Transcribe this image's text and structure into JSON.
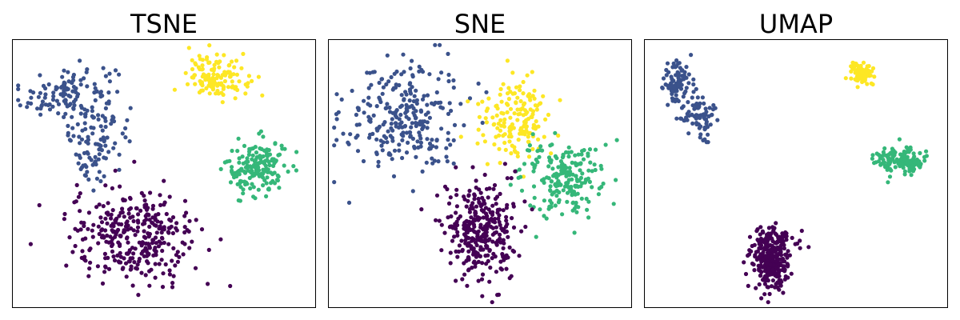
{
  "chart_data": [
    {
      "type": "scatter",
      "title": "TSNE",
      "xlabel": "",
      "ylabel": "",
      "axis_ticks": false,
      "grid": false,
      "legend": "none",
      "xlim": [
        0,
        100
      ],
      "ylim": [
        0,
        100
      ],
      "clusters": [
        {
          "color": "#3b528b",
          "count": 220,
          "parts": [
            {
              "cx": 18,
              "cy": 80,
              "sx": 8,
              "sy": 6,
              "frac": 0.6
            },
            {
              "cx": 28,
              "cy": 65,
              "sx": 5,
              "sy": 7,
              "frac": 0.25
            },
            {
              "cx": 26,
              "cy": 55,
              "sx": 4,
              "sy": 5,
              "frac": 0.15
            }
          ]
        },
        {
          "color": "#fde725",
          "count": 130,
          "parts": [
            {
              "cx": 68,
              "cy": 87,
              "sx": 5,
              "sy": 4,
              "frac": 1.0
            }
          ]
        },
        {
          "color": "#35b779",
          "count": 170,
          "parts": [
            {
              "cx": 81,
              "cy": 52,
              "sx": 5,
              "sy": 5.5,
              "frac": 1.0
            }
          ]
        },
        {
          "color": "#440154",
          "count": 330,
          "parts": [
            {
              "cx": 40,
              "cy": 26,
              "sx": 11,
              "sy": 9,
              "frac": 1.0
            }
          ]
        }
      ]
    },
    {
      "type": "scatter",
      "title": "SNE",
      "xlabel": "",
      "ylabel": "",
      "axis_ticks": false,
      "grid": false,
      "legend": "none",
      "xlim": [
        0,
        100
      ],
      "ylim": [
        0,
        100
      ],
      "clusters": [
        {
          "color": "#3b528b",
          "count": 270,
          "parts": [
            {
              "cx": 24,
              "cy": 72,
              "sx": 10,
              "sy": 11,
              "frac": 1.0
            }
          ]
        },
        {
          "color": "#fde725",
          "count": 160,
          "parts": [
            {
              "cx": 62,
              "cy": 71,
              "sx": 6,
              "sy": 7,
              "frac": 1.0
            }
          ]
        },
        {
          "color": "#35b779",
          "count": 200,
          "parts": [
            {
              "cx": 77,
              "cy": 48,
              "sx": 7,
              "sy": 7,
              "frac": 1.0
            }
          ]
        },
        {
          "color": "#440154",
          "count": 330,
          "parts": [
            {
              "cx": 50,
              "cy": 28,
              "sx": 6,
              "sy": 9,
              "frac": 1.0
            }
          ]
        }
      ]
    },
    {
      "type": "scatter",
      "title": "UMAP",
      "xlabel": "",
      "ylabel": "",
      "axis_ticks": false,
      "grid": false,
      "legend": "none",
      "xlim": [
        0,
        100
      ],
      "ylim": [
        0,
        100
      ],
      "clusters": [
        {
          "color": "#3b528b",
          "count": 170,
          "parts": [
            {
              "cx": 10,
              "cy": 85,
              "sx": 2.5,
              "sy": 4,
              "frac": 0.55
            },
            {
              "cx": 17,
              "cy": 73,
              "sx": 3,
              "sy": 3.5,
              "frac": 0.35
            },
            {
              "cx": 19,
              "cy": 67,
              "sx": 1.5,
              "sy": 3,
              "frac": 0.1
            }
          ]
        },
        {
          "color": "#fde725",
          "count": 80,
          "parts": [
            {
              "cx": 72,
              "cy": 88,
              "sx": 2,
              "sy": 2.2,
              "frac": 1.0
            }
          ]
        },
        {
          "color": "#35b779",
          "count": 150,
          "parts": [
            {
              "cx": 85,
              "cy": 55,
              "sx": 4,
              "sy": 2.5,
              "frac": 1.0
            }
          ]
        },
        {
          "color": "#440154",
          "count": 330,
          "parts": [
            {
              "cx": 41,
              "cy": 16,
              "sx": 3,
              "sy": 5,
              "frac": 0.8
            },
            {
              "cx": 43,
              "cy": 24,
              "sx": 4,
              "sy": 3,
              "frac": 0.2
            }
          ]
        }
      ]
    }
  ]
}
